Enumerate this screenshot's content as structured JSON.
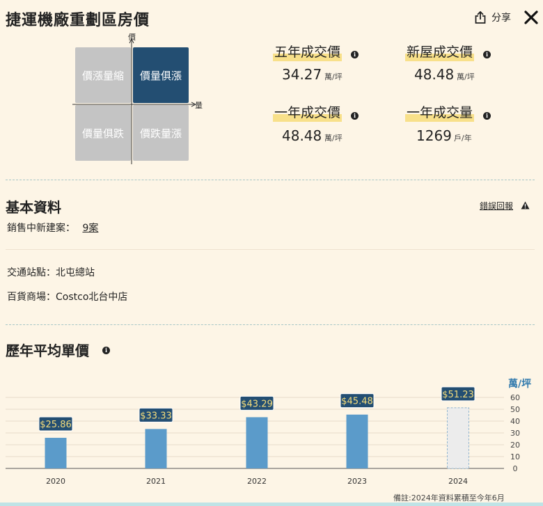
{
  "header": {
    "title": "捷運機廠重劃區房價",
    "share_label": "分享"
  },
  "quadrant": {
    "cells": [
      "價漲量縮",
      "價量俱漲",
      "價量俱跌",
      "價跌量漲"
    ],
    "y_axis_label": "價",
    "x_axis_label": "量"
  },
  "stats": [
    {
      "title": "五年成交價",
      "value": "34.27",
      "unit": "萬/坪"
    },
    {
      "title": "新屋成交價",
      "value": "48.48",
      "unit": "萬/坪"
    },
    {
      "title": "一年成交價",
      "value": "48.48",
      "unit": "萬/坪"
    },
    {
      "title": "一年成交量",
      "value": "1269",
      "unit": "戶/年"
    }
  ],
  "basic": {
    "title": "基本資料",
    "report_label": "錯誤回報",
    "sales_label": "銷售中新建案：",
    "sales_value": "9案",
    "transit": "交通站點：北屯總站",
    "mall": "百貨商場：Costco北台中店"
  },
  "chart_section": {
    "title": "歷年平均單價",
    "unit": "萬/坪",
    "note": "備註:2024年資料累積至今年6月"
  },
  "chart_data": {
    "type": "bar",
    "categories": [
      "2020",
      "2021",
      "2022",
      "2023",
      "2024"
    ],
    "values": [
      25.86,
      33.33,
      43.29,
      45.48,
      51.23
    ],
    "labels": [
      "$25.86",
      "$33.33",
      "$43.29",
      "$45.48",
      "$51.23"
    ],
    "ylim": [
      0,
      60
    ],
    "yticks": [
      0,
      10,
      20,
      30,
      40,
      50,
      60
    ],
    "bar_color": "#5b9bca",
    "partial_bar_color": "#ececec",
    "label_bg": "#234e72",
    "label_text_color": "#f6dd7b",
    "grid": true
  }
}
